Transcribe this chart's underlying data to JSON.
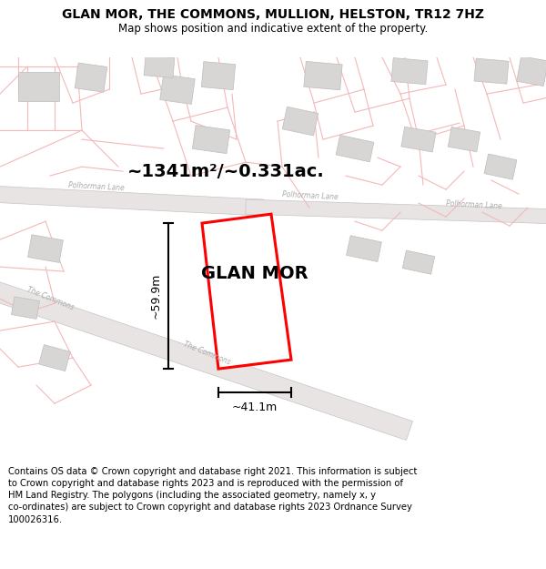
{
  "title": "GLAN MOR, THE COMMONS, MULLION, HELSTON, TR12 7HZ",
  "subtitle": "Map shows position and indicative extent of the property.",
  "footer": "Contains OS data © Crown copyright and database right 2021. This information is subject to Crown copyright and database rights 2023 and is reproduced with the permission of HM Land Registry. The polygons (including the associated geometry, namely x, y co-ordinates) are subject to Crown copyright and database rights 2023 Ordnance Survey 100026316.",
  "area_label": "~1341m²/~0.331ac.",
  "property_label": "GLAN MOR",
  "dim_height": "~59.9m",
  "dim_width": "~41.1m",
  "map_bg": "#ffffff",
  "road_fill": "#e8e4e4",
  "road_edge": "#c8c4c4",
  "plot_color": "#ff0000",
  "building_fill": "#d8d5d5",
  "building_edge": "#c0bcbc",
  "boundary_color": "#f4b8b8",
  "road_label_color": "#aaaaaa",
  "title_fontsize": 10,
  "subtitle_fontsize": 8.5,
  "footer_fontsize": 7.2,
  "area_fontsize": 14,
  "label_fontsize": 14,
  "dim_fontsize": 9
}
